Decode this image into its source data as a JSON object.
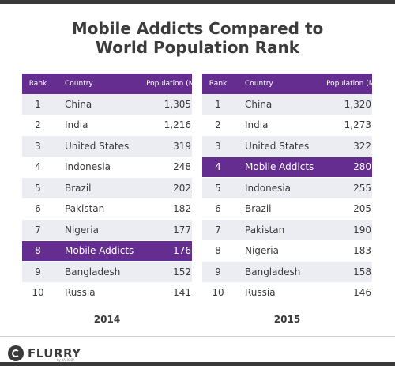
{
  "title": {
    "line1": "Mobile Addicts Compared to",
    "line2": "World Population Rank"
  },
  "headers": {
    "rank": "Rank",
    "country": "Country",
    "population": "Population (M)"
  },
  "tables": [
    {
      "year": "2014",
      "rows": [
        {
          "rank": "1",
          "country": "China",
          "population": "1,305",
          "highlight": false
        },
        {
          "rank": "2",
          "country": "India",
          "population": "1,216",
          "highlight": false
        },
        {
          "rank": "3",
          "country": "United States",
          "population": "319",
          "highlight": false
        },
        {
          "rank": "4",
          "country": "Indonesia",
          "population": "248",
          "highlight": false
        },
        {
          "rank": "5",
          "country": "Brazil",
          "population": "202",
          "highlight": false
        },
        {
          "rank": "6",
          "country": "Pakistan",
          "population": "182",
          "highlight": false
        },
        {
          "rank": "7",
          "country": "Nigeria",
          "population": "177",
          "highlight": false
        },
        {
          "rank": "8",
          "country": "Mobile Addicts",
          "population": "176",
          "highlight": true
        },
        {
          "rank": "9",
          "country": "Bangladesh",
          "population": "152",
          "highlight": false
        },
        {
          "rank": "10",
          "country": "Russia",
          "population": "141",
          "highlight": false
        }
      ]
    },
    {
      "year": "2015",
      "rows": [
        {
          "rank": "1",
          "country": "China",
          "population": "1,320",
          "highlight": false
        },
        {
          "rank": "2",
          "country": "India",
          "population": "1,273",
          "highlight": false
        },
        {
          "rank": "3",
          "country": "United States",
          "population": "322",
          "highlight": false
        },
        {
          "rank": "4",
          "country": "Mobile Addicts",
          "population": "280",
          "highlight": true
        },
        {
          "rank": "5",
          "country": "Indonesia",
          "population": "255",
          "highlight": false
        },
        {
          "rank": "6",
          "country": "Brazil",
          "population": "205",
          "highlight": false
        },
        {
          "rank": "7",
          "country": "Pakistan",
          "population": "190",
          "highlight": false
        },
        {
          "rank": "8",
          "country": "Nigeria",
          "population": "183",
          "highlight": false
        },
        {
          "rank": "9",
          "country": "Bangladesh",
          "population": "158",
          "highlight": false
        },
        {
          "rank": "10",
          "country": "Russia",
          "population": "146",
          "highlight": false
        }
      ]
    }
  ],
  "footer": {
    "brand": "FLURRY",
    "sub": "by YAHOO!"
  },
  "colors": {
    "highlight": "#652d90",
    "row_alt": "#ececf3",
    "text": "#3a3a3a"
  }
}
